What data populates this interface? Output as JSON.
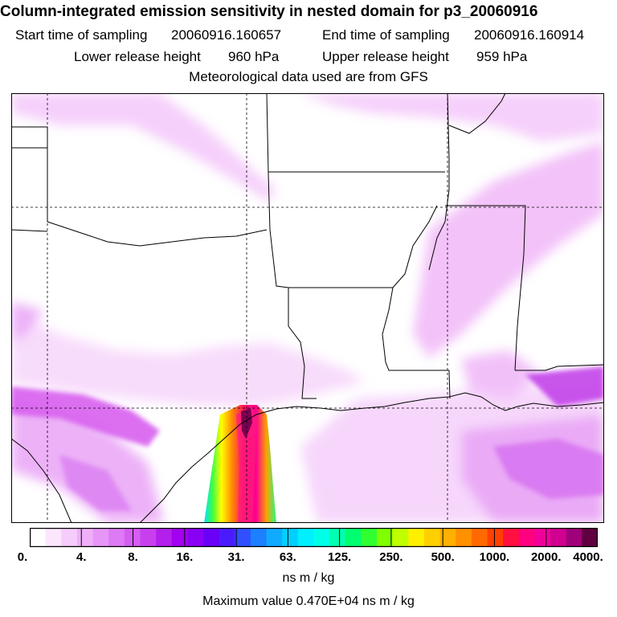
{
  "title": "Column-integrated emission sensitivity in nested domain for p3_20060916",
  "start_label": "Start time of sampling",
  "start_value": "20060916.160657",
  "end_label": "End time of sampling",
  "end_value": "20060916.160914",
  "lower_label": "Lower release height",
  "lower_value": "960 hPa",
  "upper_label": "Upper release height",
  "upper_value": "959 hPa",
  "met_line": "Meteorological data used are from GFS",
  "colorbar": {
    "ticks": [
      "0.",
      "4.",
      "8.",
      "16.",
      "31.",
      "63.",
      "125.",
      "250.",
      "500.",
      "1000.",
      "2000.",
      "4000."
    ],
    "colors": [
      "#ffffff",
      "#fbe6fd",
      "#f5ccfb",
      "#f0b0f9",
      "#e795f7",
      "#de7af4",
      "#d45ef1",
      "#c840ee",
      "#b31feb",
      "#a300f0",
      "#8a00f5",
      "#6a00f8",
      "#4b1bff",
      "#3050ff",
      "#1c80ff",
      "#10aaff",
      "#00d0ff",
      "#00f0ff",
      "#00ffe8",
      "#00ffb0",
      "#00ff70",
      "#30ff30",
      "#80ff00",
      "#c0ff00",
      "#fff000",
      "#ffd000",
      "#ffb000",
      "#ff9000",
      "#ff6a00",
      "#ff4000",
      "#ff1040",
      "#ff0080",
      "#f0009a",
      "#d00090",
      "#a0007a",
      "#600040"
    ],
    "units": "ns m / kg"
  },
  "max_value_text": "Maximum value  0.470E+04 ns m / kg",
  "colors": {
    "land_plume": "#e890f0",
    "plume_core": "#ff1a80",
    "coast": "#000000"
  }
}
